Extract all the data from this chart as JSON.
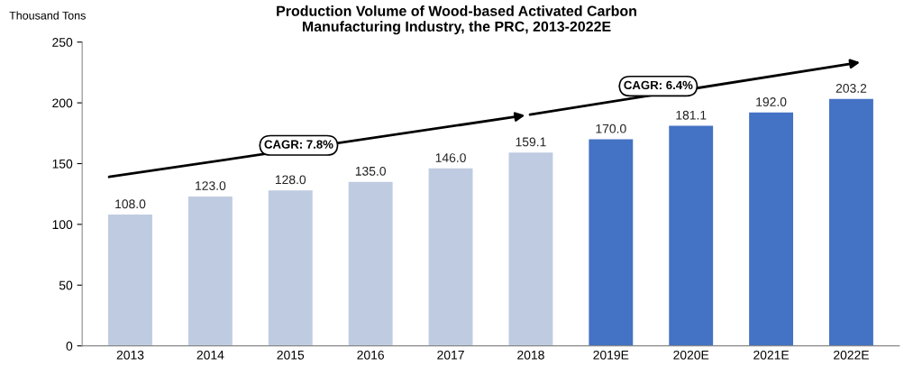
{
  "chart_data": {
    "type": "bar",
    "title": "Production Volume of Wood-based Activated Carbon\nManufacturing Industry, the PRC, 2013-2022E",
    "ylabel": "Thousand Tons",
    "categories": [
      "2013",
      "2014",
      "2015",
      "2016",
      "2017",
      "2018",
      "2019E",
      "2020E",
      "2021E",
      "2022E"
    ],
    "values": [
      108.0,
      123.0,
      128.0,
      135.0,
      146.0,
      159.1,
      170.0,
      181.1,
      192.0,
      203.2
    ],
    "value_labels": [
      "108.0",
      "123.0",
      "128.0",
      "135.0",
      "146.0",
      "159.1",
      "170.0",
      "181.1",
      "192.0",
      "203.2"
    ],
    "colors": [
      "#bfcbe0",
      "#bfcbe0",
      "#bfcbe0",
      "#bfcbe0",
      "#bfcbe0",
      "#bfcbe0",
      "#4472c4",
      "#4472c4",
      "#4472c4",
      "#4472c4"
    ],
    "ylim": [
      0,
      250
    ],
    "yticks": [
      0,
      50,
      100,
      150,
      200,
      250
    ],
    "annotations": [
      "CAGR: 7.8%",
      "CAGR: 6.4%"
    ]
  }
}
